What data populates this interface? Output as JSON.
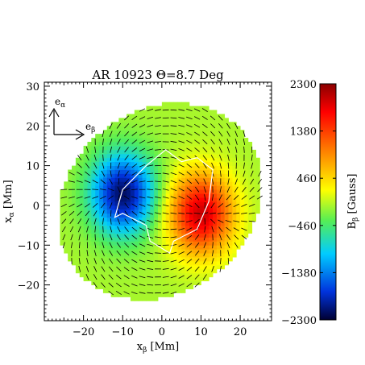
{
  "chart_data": {
    "type": "heatmap",
    "title": "AR 10923 Θ=8.7 Deg",
    "xlabel": {
      "base": "x",
      "sub": "β",
      "unit": " [Mm]"
    },
    "ylabel": {
      "base": "x",
      "sub": "α",
      "unit": " [Mm]"
    },
    "xlim": [
      -30,
      28
    ],
    "ylim": [
      -29,
      31
    ],
    "x_ticks": [
      -20,
      -10,
      0,
      10,
      20
    ],
    "y_ticks": [
      -20,
      -10,
      0,
      10,
      20,
      30
    ],
    "x_tick_labels": [
      "−20",
      "−10",
      "0",
      "10",
      "20"
    ],
    "y_tick_labels": [
      "−20",
      "−10",
      "0",
      "10",
      "20",
      "30"
    ],
    "colorbar": {
      "label": {
        "base": "B",
        "sub": "β",
        "unit": " [Gauss]"
      },
      "range": [
        -2300,
        2300
      ],
      "ticks": [
        2300,
        1380,
        460,
        -460,
        -1380,
        -2300
      ],
      "tick_labels": [
        "2300",
        "1380",
        "460",
        "−460",
        "−1380",
        "−2300"
      ],
      "colormap": "rainbow"
    },
    "field_region": {
      "shape": "tilted ellipse",
      "center": [
        -0.5,
        1
      ],
      "semi_axes": [
        27.5,
        23
      ],
      "tilt_deg": 37
    },
    "field_sources": [
      {
        "polarity": "positive",
        "center": [
          10,
          -2
        ],
        "peak_gauss": 2300
      },
      {
        "polarity": "negative",
        "center": [
          -10,
          3
        ],
        "peak_gauss": -2300
      }
    ],
    "neutral_line": {
      "description": "white contour",
      "points": [
        [
          -12,
          -3
        ],
        [
          -10,
          4
        ],
        [
          -4,
          10
        ],
        [
          1,
          14
        ],
        [
          5,
          11
        ],
        [
          9,
          12
        ],
        [
          13,
          9
        ],
        [
          12,
          1
        ],
        [
          9,
          -6
        ],
        [
          3,
          -9
        ],
        [
          2,
          -12
        ],
        [
          -3,
          -9
        ],
        [
          -4,
          -5
        ],
        [
          -10,
          -2
        ]
      ]
    },
    "vector_field": {
      "description": "transverse field arrows",
      "dominant_direction": "from positive toward negative polarity"
    },
    "basis_vectors": [
      {
        "base": "e",
        "sub": "α",
        "direction": "up"
      },
      {
        "base": "e",
        "sub": "β",
        "direction": "right"
      }
    ]
  },
  "colors": {
    "background": "#ffffff",
    "axis": "#000000",
    "arrow": "#000000",
    "contour": "#ffffff"
  }
}
